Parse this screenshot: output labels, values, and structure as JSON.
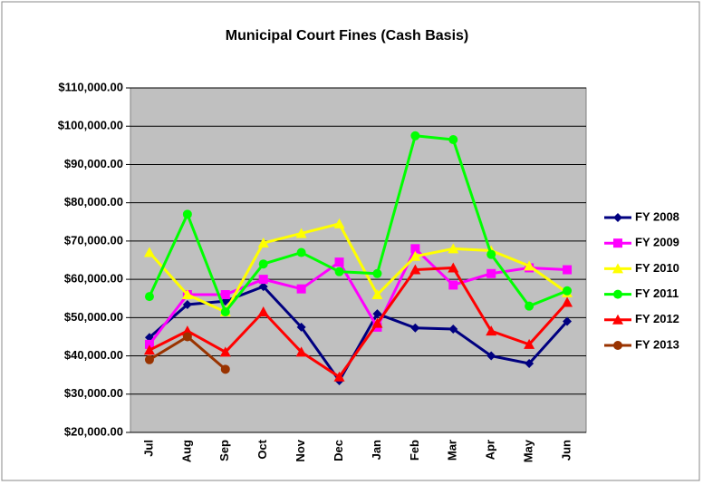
{
  "chart_data": {
    "type": "line",
    "title": "Municipal Court Fines (Cash Basis)",
    "categories": [
      "Jul",
      "Aug",
      "Sep",
      "Oct",
      "Nov",
      "Dec",
      "Jan",
      "Feb",
      "Mar",
      "Apr",
      "May",
      "Jun"
    ],
    "series": [
      {
        "name": "FY 2008",
        "color": "#000080",
        "marker": "diamond",
        "values": [
          44800,
          53400,
          54300,
          58100,
          47500,
          33500,
          51000,
          47300,
          47000,
          40000,
          38000,
          49000
        ]
      },
      {
        "name": "FY 2009",
        "color": "#ff00ff",
        "marker": "square",
        "values": [
          43000,
          56000,
          56000,
          60000,
          57500,
          64500,
          47500,
          68000,
          58500,
          61500,
          63000,
          62500
        ]
      },
      {
        "name": "FY 2010",
        "color": "#ffff00",
        "marker": "triangle",
        "values": [
          67000,
          56000,
          51500,
          69500,
          72000,
          74500,
          56000,
          66000,
          68000,
          67500,
          63500,
          56500
        ]
      },
      {
        "name": "FY 2011",
        "color": "#00ff00",
        "marker": "circle",
        "values": [
          55500,
          77000,
          51500,
          64000,
          67000,
          62000,
          61500,
          97500,
          96500,
          66500,
          53000,
          57000
        ]
      },
      {
        "name": "FY 2012",
        "color": "#ff0000",
        "marker": "triangle",
        "values": [
          41500,
          46500,
          41000,
          51500,
          41000,
          34500,
          48500,
          62500,
          63000,
          46500,
          43000,
          54000
        ]
      },
      {
        "name": "FY 2013",
        "color": "#993300",
        "marker": "circle",
        "values": [
          39000,
          45000,
          36500,
          null,
          null,
          null,
          null,
          null,
          null,
          null,
          null,
          null
        ]
      }
    ],
    "ylim": [
      20000,
      110000
    ],
    "yticks": [
      {
        "value": 20000,
        "label": "$20,000.00"
      },
      {
        "value": 30000,
        "label": "$30,000.00"
      },
      {
        "value": 40000,
        "label": "$40,000.00"
      },
      {
        "value": 50000,
        "label": "$50,000.00"
      },
      {
        "value": 60000,
        "label": "$60,000.00"
      },
      {
        "value": 70000,
        "label": "$70,000.00"
      },
      {
        "value": 80000,
        "label": "$80,000.00"
      },
      {
        "value": 90000,
        "label": "$90,000.00"
      },
      {
        "value": 100000,
        "label": "$100,000.00"
      },
      {
        "value": 110000,
        "label": "$110,000.00"
      }
    ],
    "grid": true,
    "legend": "right"
  }
}
